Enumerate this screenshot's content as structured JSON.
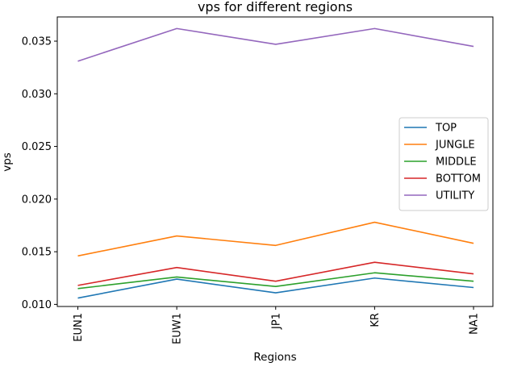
{
  "chart_data": {
    "type": "line",
    "title": "vps for different regions",
    "xlabel": "Regions",
    "ylabel": "vps",
    "categories": [
      "EUN1",
      "EUW1",
      "JP1",
      "KR",
      "NA1"
    ],
    "ylim": [
      0.0098,
      0.0373
    ],
    "yticks": [
      0.01,
      0.015,
      0.02,
      0.025,
      0.03,
      0.035
    ],
    "ytick_labels": [
      "0.010",
      "0.015",
      "0.020",
      "0.025",
      "0.030",
      "0.035"
    ],
    "grid": false,
    "legend_position": "center-right",
    "series": [
      {
        "name": "TOP",
        "color": "#1f77b4",
        "values": [
          0.0106,
          0.0124,
          0.0111,
          0.0125,
          0.0116
        ]
      },
      {
        "name": "JUNGLE",
        "color": "#ff7f0e",
        "values": [
          0.0146,
          0.0165,
          0.0156,
          0.0178,
          0.0158
        ]
      },
      {
        "name": "MIDDLE",
        "color": "#2ca02c",
        "values": [
          0.0115,
          0.0126,
          0.0117,
          0.013,
          0.0122
        ]
      },
      {
        "name": "BOTTOM",
        "color": "#d62728",
        "values": [
          0.0118,
          0.0135,
          0.0122,
          0.014,
          0.0129
        ]
      },
      {
        "name": "UTILITY",
        "color": "#9467bd",
        "values": [
          0.0331,
          0.0362,
          0.0347,
          0.0362,
          0.0345
        ]
      }
    ]
  }
}
